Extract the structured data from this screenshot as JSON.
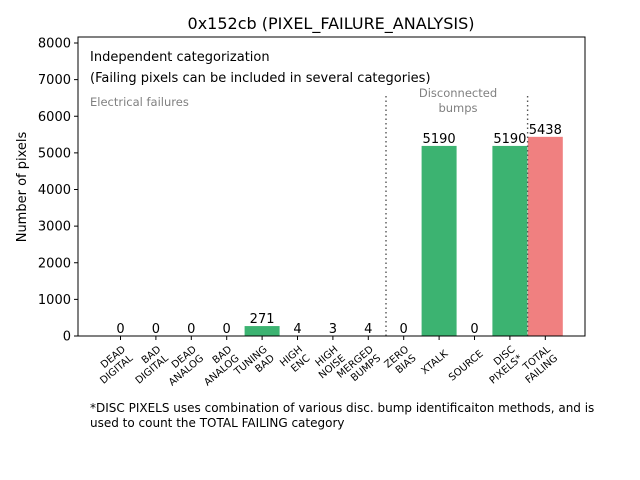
{
  "chart_data": {
    "type": "bar",
    "title": "0x152cb (PIXEL_FAILURE_ANALYSIS)",
    "xlabel": "",
    "ylabel": "Number of pixels",
    "ylim": [
      0,
      8200
    ],
    "yticks": [
      0,
      1000,
      2000,
      3000,
      4000,
      5000,
      6000,
      7000,
      8000
    ],
    "grid": false,
    "categories": [
      [
        "DEAD",
        "DIGITAL"
      ],
      [
        "BAD",
        "DIGITAL"
      ],
      [
        "DEAD",
        "ANALOG"
      ],
      [
        "BAD",
        "ANALOG"
      ],
      [
        "TUNING",
        "BAD"
      ],
      [
        "HIGH",
        "ENC"
      ],
      [
        "HIGH",
        "NOISE"
      ],
      [
        "MERGED",
        "BUMPS"
      ],
      [
        "ZERO",
        "BIAS"
      ],
      [
        "XTALK"
      ],
      [
        "SOURCE"
      ],
      [
        "DISC",
        "PIXELS*"
      ],
      [
        "TOTAL",
        "FAILING"
      ]
    ],
    "values": [
      0,
      0,
      0,
      0,
      271,
      4,
      3,
      4,
      0,
      5190,
      0,
      5190,
      5438
    ],
    "bar_colors": [
      "#3cb371",
      "#3cb371",
      "#3cb371",
      "#3cb371",
      "#3cb371",
      "#3cb371",
      "#3cb371",
      "#3cb371",
      "#3cb371",
      "#3cb371",
      "#3cb371",
      "#3cb371",
      "#f08080"
    ],
    "annotations": {
      "line1": "Independent categorization",
      "line2": "(Failing pixels can be included in several categories)",
      "electrical": "Electrical failures",
      "disconnected": [
        "Disconnected",
        "bumps"
      ]
    },
    "dividers_after_index": [
      7,
      11
    ]
  },
  "footnote": [
    "*DISC PIXELS uses combination of various disc. bump identificaiton methods, and is",
    "used to count the TOTAL FAILING category"
  ]
}
